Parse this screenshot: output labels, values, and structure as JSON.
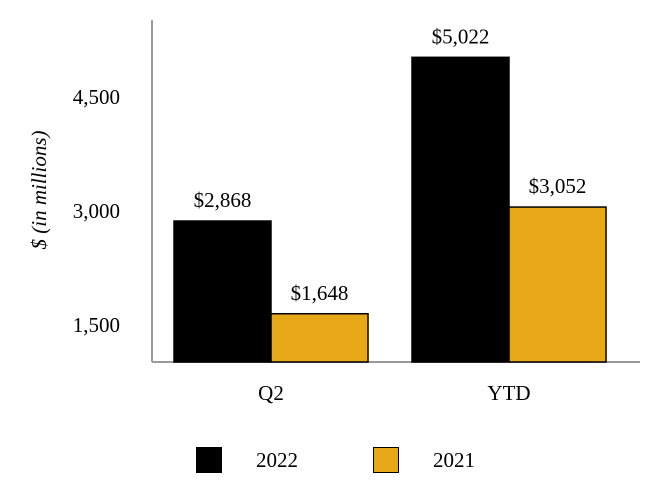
{
  "chart_data": {
    "type": "bar",
    "title": "",
    "xlabel": "",
    "ylabel": "$ (in millions)",
    "categories": [
      "Q2",
      "YTD"
    ],
    "series": [
      {
        "name": "2022",
        "color": "#000000",
        "values": [
          2868,
          5022
        ],
        "labels": [
          "$2,868",
          "$5,022"
        ]
      },
      {
        "name": "2021",
        "color": "#E6A817",
        "values": [
          1648,
          3052
        ],
        "labels": [
          "$1,648",
          "$3,052"
        ]
      }
    ],
    "yticks": [
      1500,
      3000,
      4500
    ],
    "ytick_labels": [
      "1,500",
      "3,000",
      "4,500"
    ],
    "ylim": [
      1000,
      5500
    ],
    "grid": false,
    "legend_position": "bottom"
  }
}
